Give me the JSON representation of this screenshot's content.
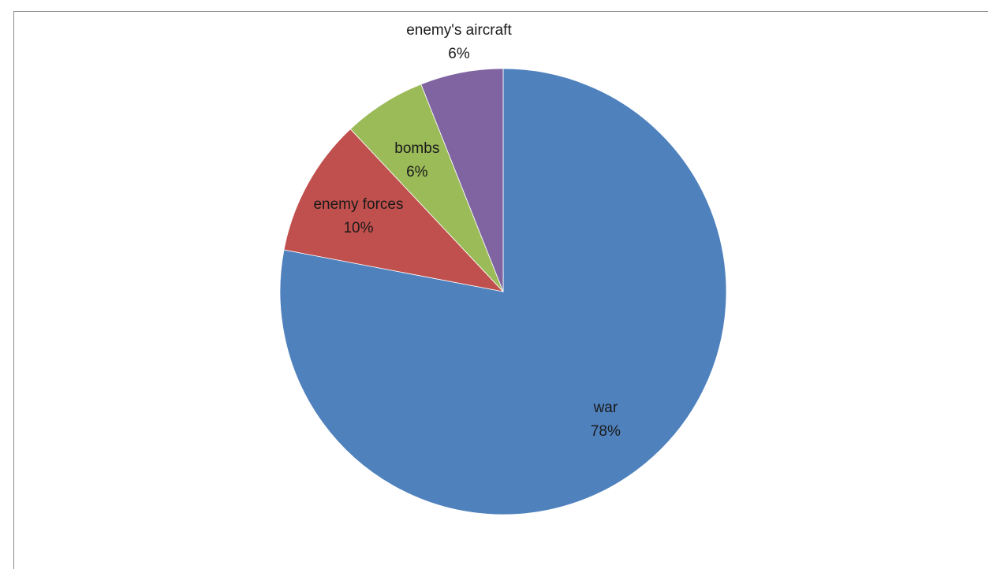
{
  "chart_data": {
    "type": "pie",
    "title": "",
    "start_angle_deg": 0,
    "direction": "clockwise",
    "slices": [
      {
        "name": "war",
        "value": 78,
        "percent_label": "78%",
        "color": "#4F81BD"
      },
      {
        "name": "enemy forces",
        "value": 10,
        "percent_label": "10%",
        "color": "#C0504D"
      },
      {
        "name": "bombs",
        "value": 6,
        "percent_label": "6%",
        "color": "#9BBB59"
      },
      {
        "name": "enemy's aircraft",
        "value": 6,
        "percent_label": "6%",
        "color": "#8064A2"
      }
    ]
  }
}
